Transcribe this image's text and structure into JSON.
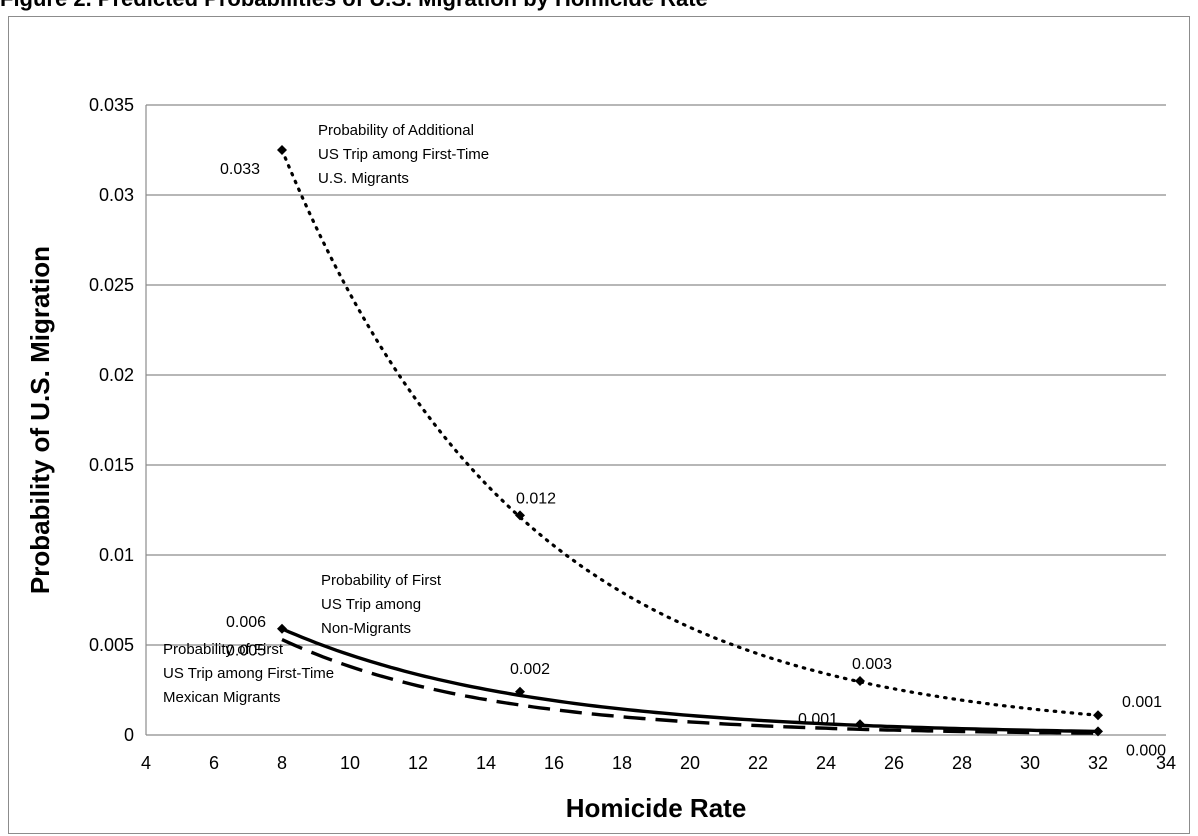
{
  "page": {
    "title": "Figure 2. Predicted Probabilities of U.S. Migration by Homicide Rate"
  },
  "chart_data": {
    "type": "line",
    "xlabel": "Homicide Rate",
    "ylabel": "Probability of U.S. Migration",
    "xlim": [
      4,
      34
    ],
    "ylim": [
      0,
      0.035
    ],
    "x_ticks": [
      "4",
      "6",
      "8",
      "10",
      "12",
      "14",
      "16",
      "18",
      "20",
      "22",
      "24",
      "26",
      "28",
      "30",
      "32",
      "34"
    ],
    "y_ticks": [
      "0",
      "0.005",
      "0.01",
      "0.015",
      "0.02",
      "0.025",
      "0.03",
      "0.035"
    ],
    "grid": "horizontal",
    "legend": "none",
    "series": [
      {
        "name": "Probability of Additional US Trip among First-Time U.S. Migrants",
        "annotation_lines": [
          "Probability of Additional",
          "US Trip among First-Time",
          "U.S. Migrants"
        ],
        "style": "dotted",
        "x": [
          8,
          15,
          25,
          32
        ],
        "y": [
          0.0325,
          0.0122,
          0.003,
          0.0011
        ],
        "labels": [
          "0.033",
          "0.012",
          "0.003",
          "0.001"
        ]
      },
      {
        "name": "Probability of First US Trip among Non-Migrants",
        "annotation_lines": [
          "Probability of First",
          "US Trip among",
          "Non-Migrants"
        ],
        "style": "solid",
        "x": [
          8,
          15,
          25,
          32
        ],
        "y": [
          0.0059,
          0.0024,
          0.0006,
          0.0002
        ],
        "labels": [
          "0.006",
          "0.002",
          "0.001",
          "0.000"
        ]
      },
      {
        "name": "Probability of First US Trip among First-Time Mexican Migrants",
        "annotation_lines": [
          "Probability of First",
          "US Trip among First-Time",
          "Mexican Migrants"
        ],
        "style": "dashed",
        "x": [
          8,
          15,
          25,
          32
        ],
        "y": [
          0.0053,
          0.0021,
          0.0004,
          0.0001
        ],
        "labels": [
          "0.005",
          "",
          "",
          ""
        ]
      }
    ]
  }
}
